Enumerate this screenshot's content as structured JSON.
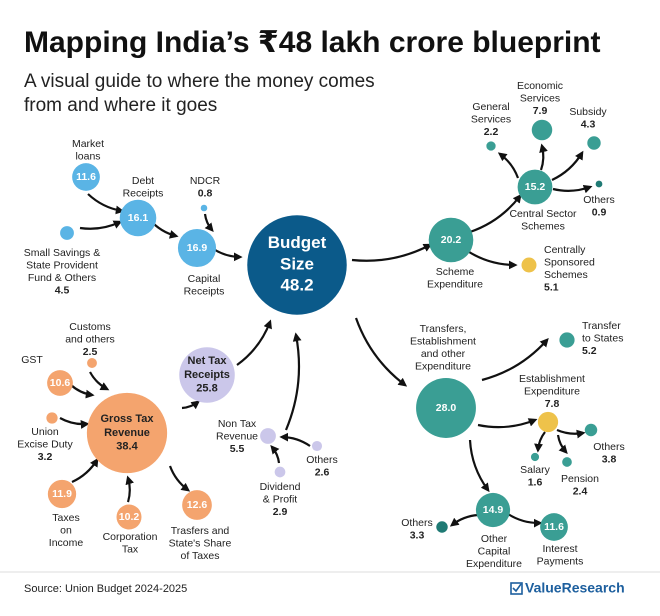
{
  "header": {
    "title": "Mapping India’s ₹48 lakh crore blueprint",
    "subtitle": [
      "A visual guide to where the money comes",
      "from and where it goes"
    ]
  },
  "nodes": [
    {
      "label": [
        "Budget",
        "Size"
      ],
      "value": 48.2
    },
    {
      "label": [
        "Market",
        "loans"
      ],
      "value": 11.6
    },
    {
      "label": [
        "Debt",
        "Receipts"
      ],
      "value": 16.1
    },
    {
      "label": [
        "NDCR"
      ],
      "value": 0.8
    },
    {
      "label": [
        "Small Savings &",
        "State Provident",
        "Fund & Others"
      ],
      "value": 4.5
    },
    {
      "label": [
        "Capital",
        "Receipts"
      ],
      "value": 16.9
    },
    {
      "label": [
        "Scheme",
        "Expenditure"
      ],
      "value": 20.2
    },
    {
      "label": [
        "Central Sector",
        "Schemes"
      ],
      "value": 15.2
    },
    {
      "label": [
        "General",
        "Services"
      ],
      "value": 2.2
    },
    {
      "label": [
        "Economic",
        "Services"
      ],
      "value": 7.9
    },
    {
      "label": [
        "Subsidy"
      ],
      "value": 4.3
    },
    {
      "label": [
        "Others"
      ],
      "value": 0.9
    },
    {
      "label": [
        "Centrally",
        "Sponsored",
        "Schemes"
      ],
      "value": 5.1
    },
    {
      "label": [
        "Transfers,",
        "Establishment",
        "and other",
        "Expenditure"
      ],
      "value": 28,
      "value_label": "28.0"
    },
    {
      "label": [
        "Transfer",
        "to States"
      ],
      "value": 5.2
    },
    {
      "label": [
        "Establishment",
        "Expenditure"
      ],
      "value": 7.8
    },
    {
      "label": [
        "Others"
      ],
      "value": 3.8
    },
    {
      "label": [
        "Salary"
      ],
      "value": 1.6
    },
    {
      "label": [
        "Pension"
      ],
      "value": 2.4
    },
    {
      "label": [
        "Other",
        "Capital",
        "Expenditure"
      ],
      "value": 14.9
    },
    {
      "label": [
        "Others"
      ],
      "value": 3.3
    },
    {
      "label": [
        "Interest",
        "Payments"
      ],
      "value": 11.6
    },
    {
      "label": [
        "Net Tax",
        "Receipts"
      ],
      "value": 25.8
    },
    {
      "label": [
        "Gross Tax",
        "Revenue"
      ],
      "value": 38.4
    },
    {
      "label": [
        "Customs",
        "and others"
      ],
      "value": 2.5
    },
    {
      "label": [
        "GST"
      ],
      "value": 10.6
    },
    {
      "label": [
        "Union",
        "Excise Duty"
      ],
      "value": 3.2
    },
    {
      "label": [
        "Taxes",
        "on",
        "Income"
      ],
      "value": 11.9
    },
    {
      "label": [
        "Corporation",
        "Tax"
      ],
      "value": 10.2
    },
    {
      "label": [
        "Trasfers and",
        "State's Share",
        "of Taxes"
      ],
      "value": 12.6
    },
    {
      "label": [
        "Non Tax",
        "Revenue"
      ],
      "value": 5.5
    },
    {
      "label": [
        "Others"
      ],
      "value": 2.6
    },
    {
      "label": [
        "Dividend",
        "& Profit"
      ],
      "value": 2.9
    }
  ],
  "footer": {
    "source": "Source: Union Budget 2024-2025",
    "brand": "ValueResearch"
  }
}
